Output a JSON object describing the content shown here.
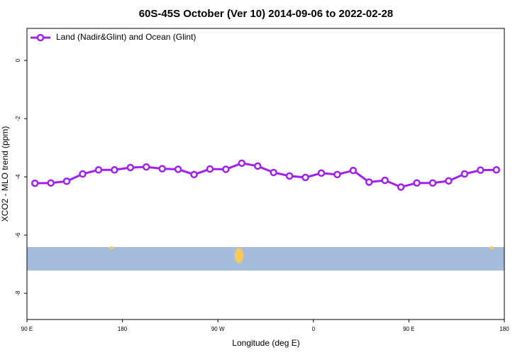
{
  "chart_data": {
    "type": "line",
    "title": "60S-45S October (Ver 10)   2014-09-06 to 2022-02-28",
    "xlabel": "Longitude (deg E)",
    "ylabel": "XCO2 - MLO trend (ppm)",
    "x": [
      97.5,
      112.5,
      127.5,
      142.5,
      157.5,
      172.5,
      187.5,
      202.5,
      217.5,
      232.5,
      247.5,
      262.5,
      277.5,
      292.5,
      307.5,
      322.5,
      337.5,
      352.5,
      367.5,
      382.5,
      397.5,
      412.5,
      427.5,
      442.5,
      457.5,
      472.5,
      487.5,
      502.5,
      517.5,
      532.5
    ],
    "series": [
      {
        "name": "Land (Nadir&Glint) and Ocean (Glint)",
        "color": "#a020f0",
        "values": [
          -4.22,
          -4.21,
          -4.15,
          -3.9,
          -3.76,
          -3.76,
          -3.68,
          -3.66,
          -3.72,
          -3.74,
          -3.92,
          -3.73,
          -3.74,
          -3.53,
          -3.63,
          -3.85,
          -3.97,
          -4.02,
          -3.87,
          -3.92,
          -3.78,
          -4.18,
          -4.12,
          -4.35,
          -4.21,
          -4.21,
          -4.14,
          -3.9,
          -3.77,
          -3.76
        ]
      }
    ],
    "xlim": [
      90,
      540
    ],
    "xticks": [
      {
        "value": 90,
        "label": "90 E"
      },
      180,
      {
        "value": 270,
        "label": "90 W"
      },
      {
        "value": 360,
        "label": "0"
      },
      {
        "value": 450,
        "label": "90 E"
      },
      {
        "value": 540,
        "label": "180"
      }
    ],
    "ylim": [
      -8.9,
      1.1
    ],
    "yticks": [
      0,
      -2,
      -4,
      -6,
      -8
    ],
    "legend": "top-left"
  }
}
